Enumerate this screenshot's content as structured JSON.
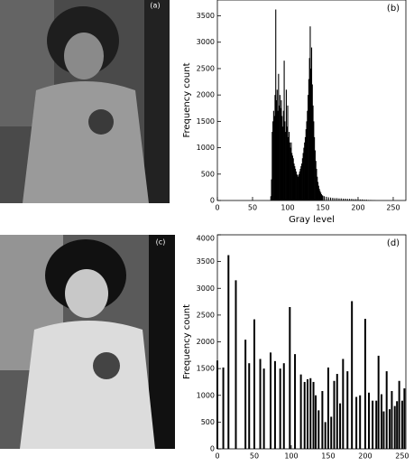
{
  "panels": {
    "a": "(a)",
    "c": "(c)"
  },
  "chart_data": [
    {
      "type": "bar",
      "annotation": "(b)",
      "xlabel": "Gray level",
      "ylabel": "Frequency count",
      "color": "#000000",
      "x": [
        76,
        77,
        78,
        79,
        80,
        81,
        82,
        83,
        84,
        85,
        86,
        87,
        88,
        89,
        90,
        91,
        92,
        93,
        94,
        95,
        96,
        97,
        98,
        99,
        100,
        101,
        102,
        103,
        104,
        105,
        106,
        107,
        108,
        109,
        110,
        111,
        112,
        113,
        114,
        115,
        116,
        117,
        118,
        119,
        120,
        121,
        122,
        123,
        124,
        125,
        126,
        127,
        128,
        129,
        130,
        131,
        132,
        133,
        134,
        135,
        136,
        137,
        138,
        139,
        140,
        141,
        142,
        143,
        144,
        145,
        146,
        147,
        148,
        149,
        150,
        152,
        155,
        158,
        161,
        164,
        167,
        170,
        173,
        176,
        179,
        182,
        185,
        188,
        191,
        194,
        197,
        200,
        203,
        206,
        209,
        212,
        215,
        218,
        221,
        224
      ],
      "values": [
        80,
        400,
        1300,
        1500,
        1700,
        1600,
        2000,
        3620,
        1900,
        2100,
        1700,
        2400,
        1800,
        2000,
        1750,
        1900,
        1600,
        1400,
        1700,
        2650,
        1500,
        1300,
        2100,
        1400,
        1800,
        1200,
        1300,
        1100,
        1000,
        1100,
        900,
        850,
        800,
        700,
        650,
        600,
        550,
        500,
        480,
        450,
        500,
        550,
        600,
        650,
        700,
        800,
        900,
        1000,
        1100,
        1200,
        1350,
        1500,
        1700,
        2000,
        2300,
        2700,
        3300,
        2500,
        2900,
        2200,
        1800,
        1500,
        1200,
        950,
        750,
        600,
        450,
        350,
        280,
        220,
        180,
        150,
        120,
        100,
        90,
        80,
        70,
        60,
        55,
        50,
        45,
        45,
        40,
        40,
        35,
        35,
        30,
        30,
        30,
        25,
        25,
        25,
        20,
        20,
        15,
        15,
        10,
        10,
        8,
        5
      ],
      "xlim": [
        0,
        268
      ],
      "xticks": [
        0,
        50,
        100,
        150,
        200,
        250
      ],
      "ylim": [
        0,
        3800
      ],
      "yticks": [
        0,
        500,
        1000,
        1500,
        2000,
        2500,
        3000,
        3500
      ]
    },
    {
      "type": "bar",
      "annotation": "(d)",
      "ylabel": "Frequency count",
      "color": "#000000",
      "x": [
        0,
        8,
        15,
        25,
        38,
        43,
        50,
        58,
        63,
        72,
        78,
        85,
        90,
        98,
        105,
        113,
        118,
        122,
        126,
        130,
        133,
        137,
        142,
        146,
        150,
        154,
        158,
        162,
        166,
        170,
        176,
        182,
        188,
        193,
        200,
        205,
        210,
        215,
        218,
        222,
        225,
        229,
        233,
        236,
        240,
        243,
        246,
        250,
        253
      ],
      "values": [
        1650,
        1520,
        3620,
        3150,
        2040,
        1600,
        2420,
        1680,
        1500,
        1800,
        1640,
        1500,
        1600,
        2650,
        1770,
        1390,
        1250,
        1300,
        1320,
        1250,
        1000,
        720,
        1080,
        500,
        1520,
        600,
        1270,
        1400,
        850,
        1680,
        1450,
        2760,
        970,
        1000,
        2430,
        1050,
        900,
        900,
        1740,
        1020,
        700,
        1450,
        740,
        1080,
        800,
        890,
        1270,
        900,
        1130
      ],
      "xlim": [
        0,
        255
      ],
      "xticks": [
        0,
        50,
        100,
        150,
        200,
        250
      ],
      "ylim": [
        0,
        4000
      ],
      "yticks": [
        0,
        500,
        1000,
        1500,
        2000,
        2500,
        3000,
        3500,
        4000
      ]
    }
  ]
}
